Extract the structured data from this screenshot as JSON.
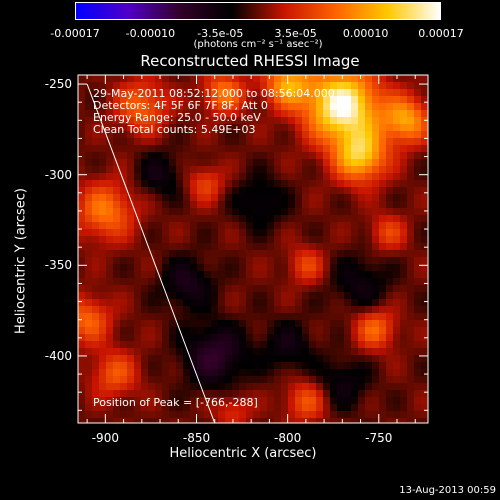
{
  "colorbar": {
    "ticks": [
      "-0.00017",
      "-0.00010",
      "-3.5e-05",
      "3.5e-05",
      "0.00010",
      "0.00017"
    ],
    "tick_values": [
      -0.00017,
      -0.0001,
      -3.5e-05,
      3.5e-05,
      0.0001,
      0.00017
    ],
    "range": [
      -0.00017,
      0.00017
    ],
    "unit": "(photons cm⁻² s⁻¹ asec⁻²)",
    "colors": [
      "#0000ff",
      "#5000c8",
      "#320028",
      "#000000",
      "#c81400",
      "#ff6400",
      "#ffc800",
      "#ffffff"
    ]
  },
  "chart_data": {
    "type": "heatmap",
    "title": "Reconstructed RHESSI Image",
    "xlabel": "Heliocentric X (arcsec)",
    "ylabel": "Heliocentric Y (arcsec)",
    "xlim": [
      -915,
      -723
    ],
    "ylim": [
      -437,
      -245
    ],
    "x_ticks": [
      -900,
      -850,
      -800,
      -750
    ],
    "y_ticks": [
      -250,
      -300,
      -350,
      -400
    ],
    "x_tick_labels": [
      "-900",
      "-850",
      "-800",
      "-750"
    ],
    "y_tick_labels": [
      "-250",
      "-300",
      "-350",
      "-400"
    ],
    "info_lines": [
      "29-May-2011 08:52:12.000 to 08:56:04.000",
      "Detectors: 4F 5F 6F 7F 8F, Att 0",
      "Energy Range: 25.0 - 50.0 keV",
      "Clean    Total counts: 5.49E+03"
    ],
    "peak_label": "Position of Peak = [-766,-288]",
    "peak": [
      -766,
      -288
    ],
    "limb_line": [
      [
        -910,
        -250
      ],
      [
        -840,
        -437
      ]
    ],
    "sources": [
      {
        "x": -770,
        "y": -262,
        "sigma": 14,
        "amp": 0.00017
      },
      {
        "x": -760,
        "y": -290,
        "sigma": 10,
        "amp": 0.00012
      },
      {
        "x": -800,
        "y": -250,
        "sigma": 9,
        "amp": 0.0001
      },
      {
        "x": -735,
        "y": -270,
        "sigma": 9,
        "amp": 0.0001
      },
      {
        "x": -835,
        "y": -255,
        "sigma": 8,
        "amp": 8e-05
      },
      {
        "x": -880,
        "y": -262,
        "sigma": 10,
        "amp": 7e-05
      },
      {
        "x": -900,
        "y": -320,
        "sigma": 11,
        "amp": 8e-05
      },
      {
        "x": -910,
        "y": -380,
        "sigma": 9,
        "amp": 7e-05
      },
      {
        "x": -895,
        "y": -410,
        "sigma": 9,
        "amp": 6e-05
      },
      {
        "x": -752,
        "y": -385,
        "sigma": 8,
        "amp": 7e-05
      },
      {
        "x": -790,
        "y": -350,
        "sigma": 7,
        "amp": 5e-05
      },
      {
        "x": -745,
        "y": -332,
        "sigma": 7,
        "amp": 5e-05
      },
      {
        "x": -790,
        "y": -425,
        "sigma": 8,
        "amp": 6e-05
      },
      {
        "x": -845,
        "y": -305,
        "sigma": 7,
        "amp": 5e-05
      },
      {
        "x": -830,
        "y": -430,
        "sigma": 7,
        "amp": 4e-05
      },
      {
        "x": -855,
        "y": -360,
        "sigma": 10,
        "amp": -5e-05
      },
      {
        "x": -840,
        "y": -400,
        "sigma": 12,
        "amp": -7e-05
      },
      {
        "x": -815,
        "y": -315,
        "sigma": 10,
        "amp": -4e-05
      },
      {
        "x": -760,
        "y": -360,
        "sigma": 11,
        "amp": -4e-05
      },
      {
        "x": -800,
        "y": -395,
        "sigma": 10,
        "amp": -4e-05
      },
      {
        "x": -870,
        "y": -300,
        "sigma": 9,
        "amp": -4e-05
      },
      {
        "x": -770,
        "y": -415,
        "sigma": 10,
        "amp": -4e-05
      }
    ]
  },
  "footer": {
    "date": "13-Aug-2013 00:59"
  }
}
